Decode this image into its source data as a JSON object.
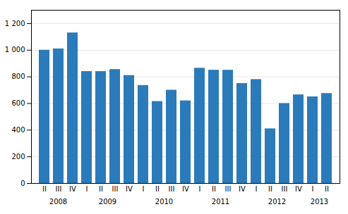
{
  "chart_data": {
    "type": "bar",
    "categories": [
      "II",
      "III",
      "IV",
      "I",
      "II",
      "III",
      "IV",
      "I",
      "II",
      "III",
      "IV",
      "I",
      "II",
      "III",
      "IV",
      "I",
      "II",
      "III",
      "IV",
      "I",
      "II"
    ],
    "values": [
      1000,
      1010,
      1130,
      840,
      840,
      855,
      810,
      735,
      615,
      700,
      620,
      865,
      850,
      850,
      750,
      780,
      410,
      600,
      665,
      650,
      675
    ],
    "color": "#2b7bba",
    "ylim": [
      0,
      1300
    ],
    "yticks": [
      0,
      200,
      400,
      600,
      800,
      {
        "value": 1000,
        "label": "1 000"
      },
      {
        "value": 1200,
        "label": "1 200"
      }
    ],
    "grid": true,
    "annotations": [
      "2008",
      "2009",
      "2010",
      "2011",
      "2012",
      "2013"
    ]
  }
}
